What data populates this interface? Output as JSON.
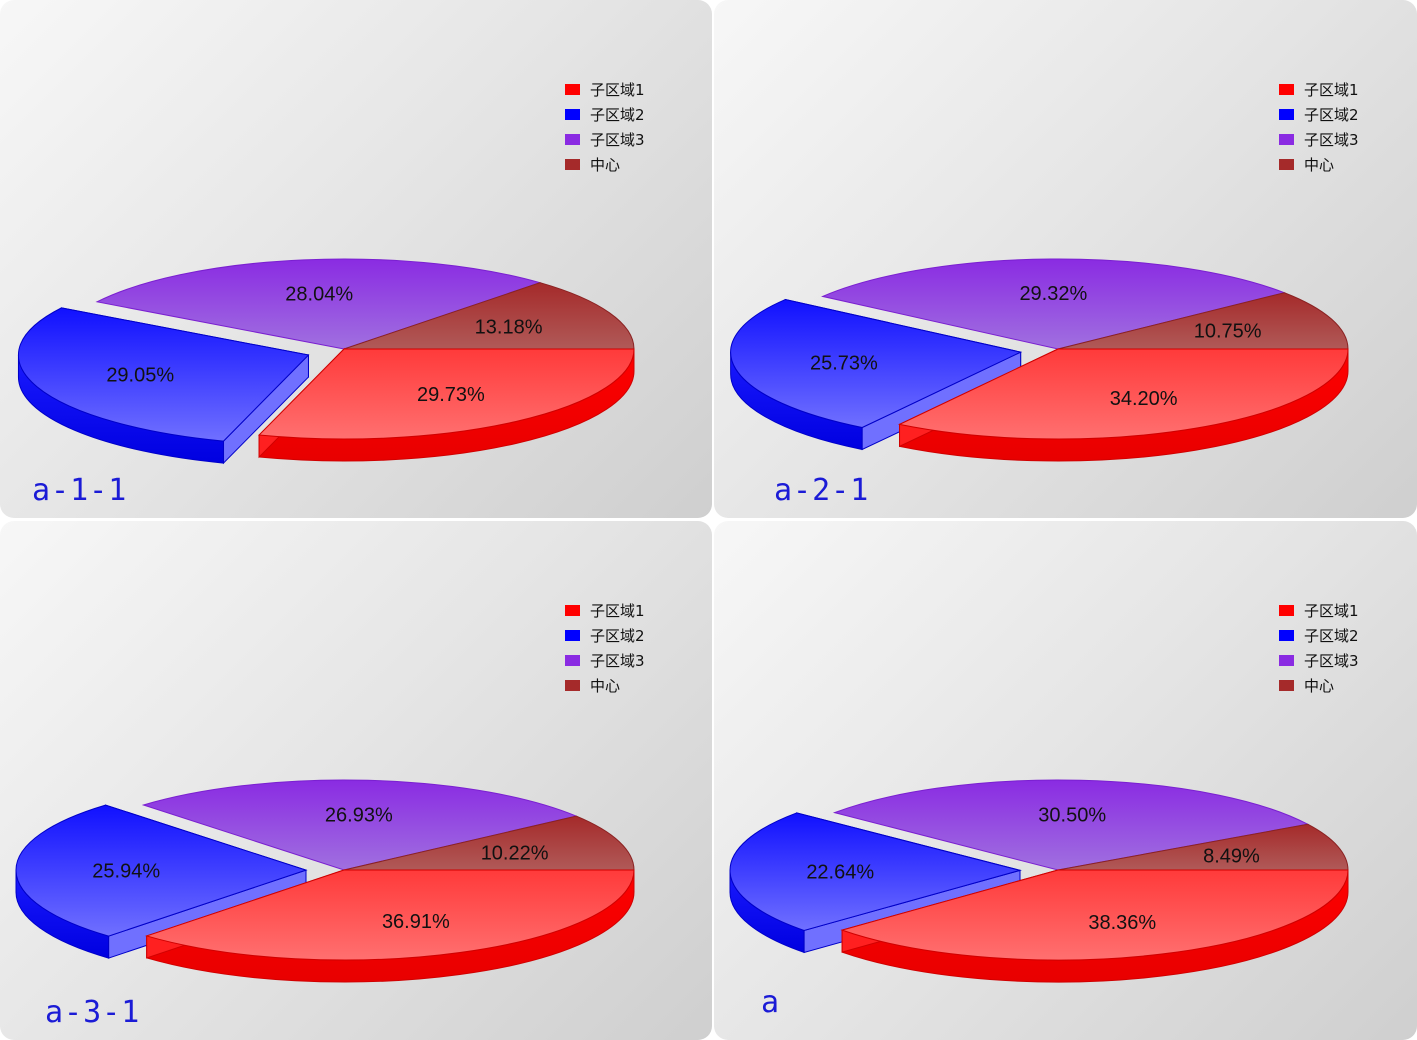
{
  "colors": {
    "series": [
      "#ff0000",
      "#0000ff",
      "#8a2be2",
      "#a52a2a"
    ]
  },
  "chart_data": [
    {
      "type": "pie",
      "title": "a-1-1",
      "legend": "top-right",
      "categories": [
        "子区域1",
        "子区域2",
        "子区域3",
        "中心"
      ],
      "values": [
        29.73,
        29.05,
        28.04,
        13.18
      ],
      "labels": [
        "29.73%",
        "29.05%",
        "28.04%",
        "13.18%"
      ]
    },
    {
      "type": "pie",
      "title": "a-2-1",
      "legend": "top-right",
      "categories": [
        "子区域1",
        "子区域2",
        "子区域3",
        "中心"
      ],
      "values": [
        34.2,
        25.73,
        29.32,
        10.75
      ],
      "labels": [
        "34.20%",
        "25.73%",
        "29.32%",
        "10.75%"
      ]
    },
    {
      "type": "pie",
      "title": "a-3-1",
      "legend": "top-right",
      "categories": [
        "子区域1",
        "子区域2",
        "子区域3",
        "中心"
      ],
      "values": [
        36.91,
        25.94,
        26.93,
        10.22
      ],
      "labels": [
        "36.91%",
        "25.94%",
        "26.93%",
        "10.22%"
      ]
    },
    {
      "type": "pie",
      "title": "a",
      "legend": "top-right",
      "categories": [
        "子区域1",
        "子区域2",
        "子区域3",
        "中心"
      ],
      "values": [
        38.36,
        22.64,
        30.5,
        8.49
      ],
      "labels": [
        "38.36%",
        "22.64%",
        "30.50%",
        "8.49%"
      ]
    }
  ]
}
